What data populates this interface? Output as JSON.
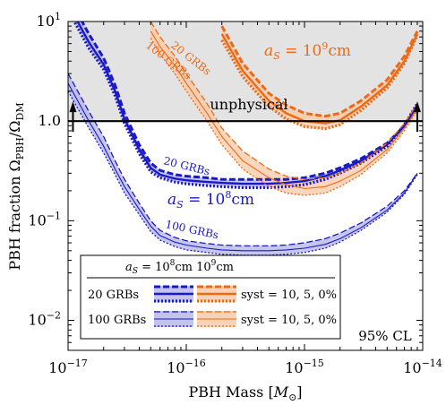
{
  "chart_data": {
    "type": "line",
    "xlabel": "PBH Mass [",
    "xlabel_unit": "M",
    "xlabel_unit_sub": "⊙",
    "xlabel_close": "]",
    "ylabel": "PBH fraction Ω",
    "ylabel_sub1": "PBH",
    "ylabel_mid": "/Ω",
    "ylabel_sub2": "DM",
    "xscale": "log",
    "yscale": "log",
    "xlim": [
      1e-17,
      1e-14
    ],
    "ylim": [
      0.005,
      10
    ],
    "x_ticks": [
      {
        "v": 1e-17,
        "base": "10",
        "exp": "−17"
      },
      {
        "v": 1e-16,
        "base": "10",
        "exp": "−16"
      },
      {
        "v": 1e-15,
        "base": "10",
        "exp": "−15"
      },
      {
        "v": 1e-14,
        "base": "10",
        "exp": "−14"
      }
    ],
    "y_ticks": [
      {
        "v": 10,
        "base": "10",
        "exp": "1",
        "plain": ""
      },
      {
        "v": 1,
        "base": "",
        "exp": "",
        "plain": "1.0"
      },
      {
        "v": 0.1,
        "base": "10",
        "exp": "−1",
        "plain": ""
      },
      {
        "v": 0.01,
        "base": "10",
        "exp": "−2",
        "plain": ""
      }
    ],
    "unphysical_label": "unphysical",
    "cl_label": "95% CL",
    "colors": {
      "blue": "#1a1ac8",
      "orange": "#ec6a16",
      "blue_fill": "#b4b4e6",
      "orange_fill": "#f8c8a6",
      "shade": "#e3e3e3"
    },
    "annotations": {
      "orange_as": {
        "prefix": "a",
        "sub": "S",
        "eq": " = 10",
        "exp": "9",
        "unit": "cm"
      },
      "blue_as": {
        "prefix": "a",
        "sub": "S",
        "eq": " = 10",
        "exp": "8",
        "unit": "cm"
      },
      "orange_20": "20 GRBs",
      "orange_100": "100 GRBs",
      "blue_20": "20 GRBs",
      "blue_100": "100 GRBs"
    },
    "series": [
      {
        "color": "blue",
        "grbs": "20 GRBs",
        "a_s": "10^8 cm",
        "x": [
          1e-17,
          1.5e-17,
          2e-17,
          2.5e-17,
          3e-17,
          4e-17,
          5e-17,
          6e-17,
          8e-17,
          1e-16,
          1.5e-16,
          2e-16,
          3e-16,
          5e-16,
          7e-16,
          1e-15,
          1.5e-15,
          2e-15,
          3e-15,
          5e-15,
          7e-15,
          9e-15
        ],
        "syst10": [
          18,
          7.5,
          4.3,
          2.3,
          1.2,
          0.58,
          0.38,
          0.32,
          0.29,
          0.28,
          0.27,
          0.26,
          0.26,
          0.26,
          0.26,
          0.27,
          0.3,
          0.34,
          0.42,
          0.6,
          0.9,
          1.35
        ],
        "syst5": [
          15,
          6.2,
          3.7,
          2.0,
          1.05,
          0.52,
          0.34,
          0.29,
          0.265,
          0.255,
          0.245,
          0.24,
          0.235,
          0.235,
          0.24,
          0.25,
          0.28,
          0.32,
          0.4,
          0.58,
          0.9,
          1.45
        ],
        "syst0": [
          13,
          5.4,
          3.3,
          1.8,
          0.95,
          0.47,
          0.31,
          0.27,
          0.245,
          0.235,
          0.225,
          0.22,
          0.215,
          0.215,
          0.22,
          0.23,
          0.26,
          0.3,
          0.38,
          0.56,
          0.92,
          1.5
        ]
      },
      {
        "color": "blue",
        "grbs": "100 GRBs",
        "a_s": "10^8 cm",
        "x": [
          1e-17,
          1.5e-17,
          2e-17,
          2.5e-17,
          3e-17,
          4e-17,
          5e-17,
          6e-17,
          8e-17,
          1e-16,
          1.5e-16,
          2e-16,
          3e-16,
          5e-16,
          7e-16,
          1e-15,
          1.5e-15,
          2e-15,
          3e-15,
          5e-15,
          7e-15,
          9e-15
        ],
        "syst10": [
          3.0,
          1.25,
          0.7,
          0.4,
          0.26,
          0.15,
          0.1,
          0.08,
          0.068,
          0.063,
          0.059,
          0.057,
          0.056,
          0.056,
          0.057,
          0.06,
          0.066,
          0.075,
          0.095,
          0.14,
          0.2,
          0.3
        ],
        "syst5": [
          2.4,
          1.0,
          0.56,
          0.33,
          0.22,
          0.13,
          0.088,
          0.071,
          0.061,
          0.057,
          0.053,
          0.051,
          0.05,
          0.05,
          0.051,
          0.053,
          0.058,
          0.066,
          0.085,
          0.128,
          0.19,
          0.3
        ],
        "syst0": [
          2.0,
          0.85,
          0.48,
          0.29,
          0.19,
          0.115,
          0.078,
          0.064,
          0.055,
          0.051,
          0.048,
          0.046,
          0.045,
          0.045,
          0.046,
          0.048,
          0.053,
          0.061,
          0.08,
          0.122,
          0.185,
          0.29
        ]
      },
      {
        "color": "orange",
        "grbs": "20 GRBs",
        "a_s": "10^9 cm",
        "x": [
          2e-16,
          3e-16,
          5e-16,
          7e-16,
          1e-15,
          1.5e-15,
          2e-15,
          3e-15,
          5e-15,
          7e-15,
          9e-15
        ],
        "syst10": [
          9.0,
          3.8,
          1.9,
          1.45,
          1.2,
          1.12,
          1.2,
          1.6,
          2.6,
          4.5,
          8.0
        ],
        "syst5": [
          7.5,
          3.2,
          1.6,
          1.2,
          1.0,
          0.95,
          1.02,
          1.4,
          2.3,
          4.0,
          7.5
        ],
        "syst0": [
          6.5,
          2.8,
          1.4,
          1.05,
          0.88,
          0.84,
          0.92,
          1.28,
          2.15,
          3.8,
          7.3
        ]
      },
      {
        "color": "orange",
        "grbs": "100 GRBs",
        "a_s": "10^9 cm",
        "x": [
          5e-17,
          6e-17,
          8e-17,
          1e-16,
          1.5e-16,
          2e-16,
          3e-16,
          5e-16,
          7e-16,
          1e-15,
          1.5e-15,
          2e-15,
          3e-15,
          5e-15,
          7e-15,
          9e-15
        ],
        "syst10": [
          10.0,
          7.0,
          4.5,
          3.0,
          1.5,
          0.85,
          0.5,
          0.33,
          0.28,
          0.26,
          0.27,
          0.3,
          0.38,
          0.6,
          0.95,
          1.5
        ],
        "syst5": [
          8.0,
          5.6,
          3.6,
          2.4,
          1.2,
          0.7,
          0.4,
          0.27,
          0.23,
          0.21,
          0.22,
          0.25,
          0.32,
          0.52,
          0.85,
          1.35
        ],
        "syst0": [
          6.8,
          4.7,
          3.0,
          2.0,
          1.0,
          0.58,
          0.33,
          0.22,
          0.19,
          0.18,
          0.19,
          0.22,
          0.29,
          0.48,
          0.8,
          1.3
        ]
      }
    ],
    "legend": {
      "header": {
        "a": "a",
        "sub": "S",
        "eq": " = 10",
        "exp1": "8",
        "cm1": "cm 10",
        "exp2": "9",
        "cm2": "cm"
      },
      "rows": [
        {
          "label": "20 GRBs",
          "syst": "syst = 10, 5, 0%"
        },
        {
          "label": "100 GRBs",
          "syst": "syst = 10, 5, 0%"
        }
      ]
    }
  }
}
